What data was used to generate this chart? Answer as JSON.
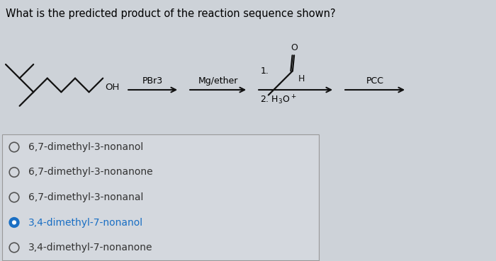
{
  "title": "What is the predicted product of the reaction sequence shown?",
  "title_fontsize": 10.5,
  "bg_color": "#cdd2d8",
  "answer_bg_color": "#d4d8de",
  "choices": [
    {
      "text": "6,7-dimethyl-3-nonanol",
      "selected": false
    },
    {
      "text": "6,7-dimethyl-3-nonanone",
      "selected": false
    },
    {
      "text": "6,7-dimethyl-3-nonanal",
      "selected": false
    },
    {
      "text": "3,4-dimethyl-7-nonanol",
      "selected": true
    },
    {
      "text": "3,4-dimethyl-7-nonanone",
      "selected": false
    }
  ],
  "choice_fontsize": 10,
  "reagent1": "PBr3",
  "reagent2": "Mg/ether",
  "reagent3_line1": "1.",
  "reagent3_line2": "2. H₃O⁺",
  "reagent4": "PCC",
  "selected_color": "#1a6fc4",
  "unselected_color": "#333333",
  "circle_unselected_color": "#555555",
  "selected_circle_color": "#1a6fc4",
  "arrow_color": "#111111",
  "mol_color": "#111111",
  "lw": 1.6,
  "arrow_lw": 1.5
}
